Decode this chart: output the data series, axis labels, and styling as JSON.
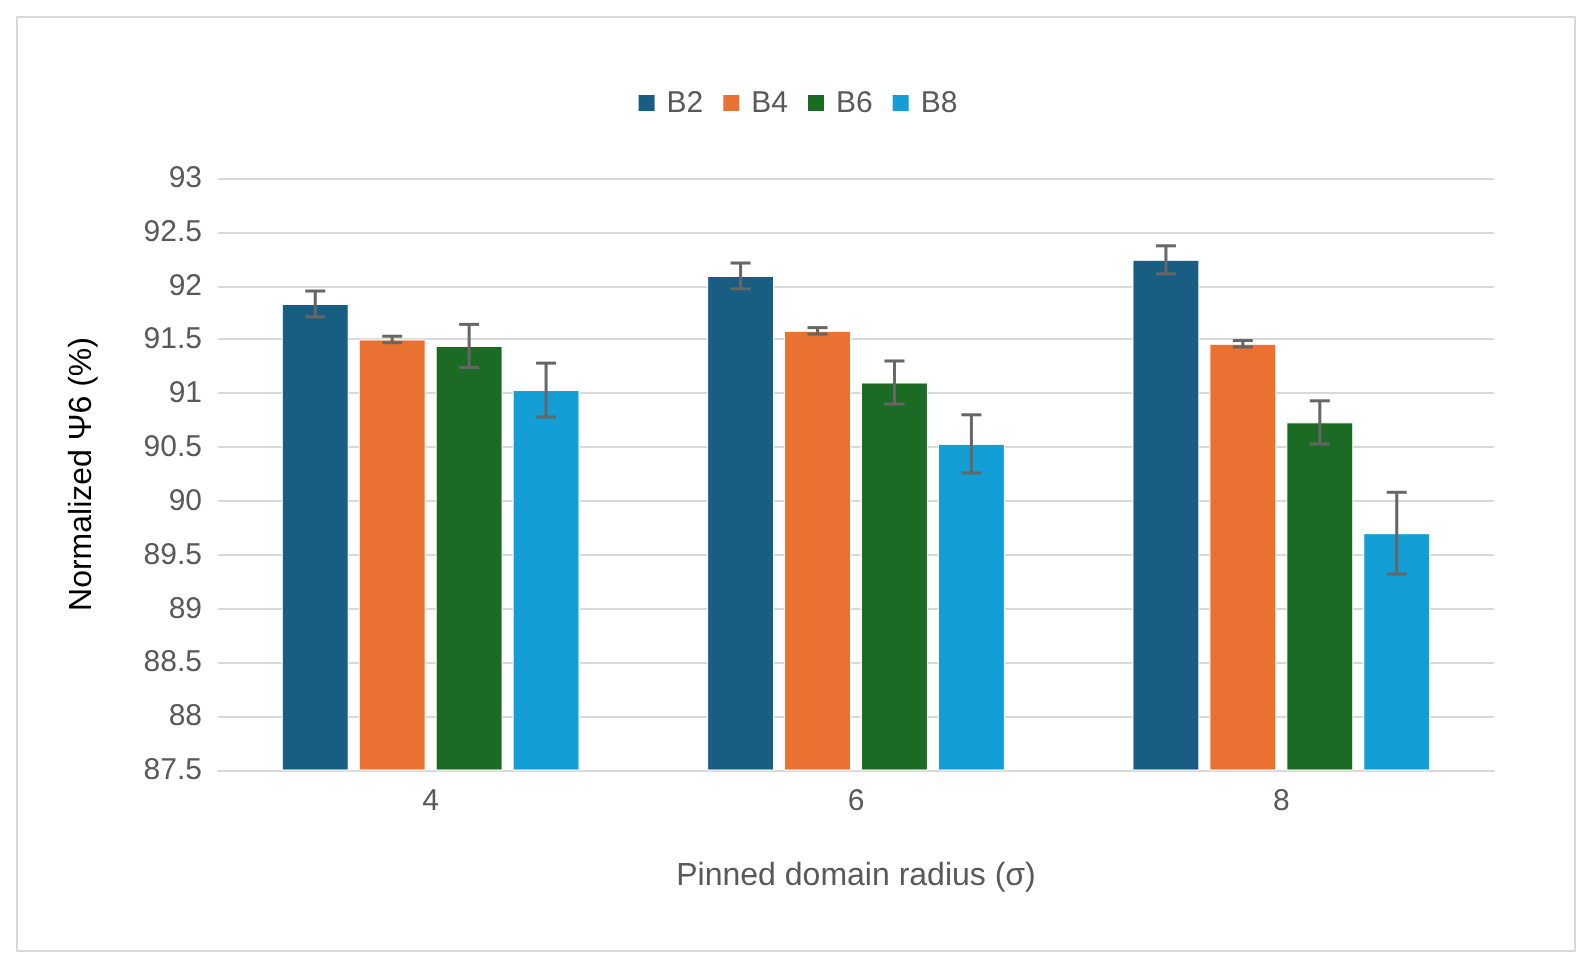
{
  "chart_data": {
    "type": "bar",
    "xlabel": "Pinned domain radius (σ)",
    "ylabel": "Normalized Ψ6 (%)",
    "categories": [
      "4",
      "6",
      "8"
    ],
    "series": [
      {
        "name": "B2",
        "color": "#175e82",
        "values": [
          91.83,
          92.09,
          92.24
        ],
        "errors": [
          0.12,
          0.12,
          0.13
        ]
      },
      {
        "name": "B4",
        "color": "#e97132",
        "values": [
          91.5,
          91.58,
          91.46
        ],
        "errors": [
          0.03,
          0.03,
          0.03
        ]
      },
      {
        "name": "B6",
        "color": "#1b6b24",
        "values": [
          91.44,
          91.1,
          90.73
        ],
        "errors": [
          0.2,
          0.2,
          0.2
        ]
      },
      {
        "name": "B8",
        "color": "#139fd6",
        "values": [
          91.03,
          90.53,
          89.7
        ],
        "errors": [
          0.25,
          0.27,
          0.38
        ]
      }
    ],
    "ylim": [
      87.5,
      93
    ],
    "yticks": [
      87.5,
      88,
      88.5,
      89,
      89.5,
      90,
      90.5,
      91,
      91.5,
      92,
      92.5,
      93
    ],
    "grid": "y",
    "legend": "top"
  }
}
